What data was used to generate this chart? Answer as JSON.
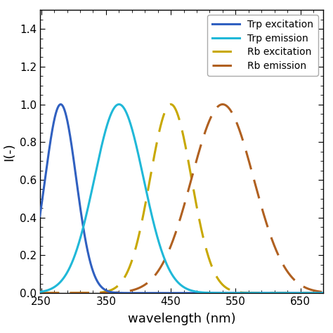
{
  "title": "",
  "xlabel": "wavelength (nm)",
  "ylabel": "I(-)",
  "xlim": [
    248,
    685
  ],
  "ylim": [
    0,
    1.5
  ],
  "yticks": [
    0.0,
    0.2,
    0.4,
    0.6,
    0.8,
    1.0,
    1.2,
    1.4
  ],
  "xticks": [
    250,
    350,
    450,
    550,
    650
  ],
  "trp_excitation_color": "#3060c0",
  "trp_emission_color": "#20b8d8",
  "rb_excitation_color": "#c8a800",
  "rb_emission_color": "#b06020",
  "legend_labels": [
    "Trp excitation",
    "Trp emission",
    "Rb excitation",
    "Rb emission"
  ],
  "linewidth": 2.2,
  "dash_pattern_on": 9,
  "dash_pattern_off": 5,
  "trp_exc_peak": 280,
  "trp_exc_sigma": 24,
  "trp_em_peak": 370,
  "trp_em_sigma": 38,
  "rb_exc_peak": 450,
  "rb_exc_sigma": 32,
  "rb_em_peak": 530,
  "rb_em_sigma": 48,
  "figsize": [
    4.74,
    4.74
  ],
  "dpi": 100
}
